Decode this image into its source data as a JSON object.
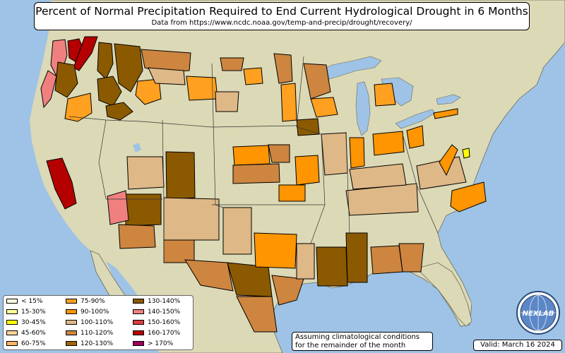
{
  "title": "Percent of Normal Precipitation Required to End Current Hydrological Drought in 6 Months",
  "subtitle": "Data from https://www.ncdc.noaa.gov/temp-and-precip/drought/recovery/",
  "note_line1": "Assuming climatological conditions",
  "note_line2": "for the remainder of the month",
  "valid_text": "Valid: March 16 2024",
  "logo_text": "NEXLAB",
  "colors": {
    "ocean": "#9ec3e6",
    "land": "#dcd9b6",
    "c_lt15": "#ffffe0",
    "c_15_30": "#ffff99",
    "c_30_45": "#ffff00",
    "c_45_60": "#ffd49a",
    "c_60_75": "#f8b464",
    "c_75_90": "#ffa020",
    "c_90_100": "#ff9500",
    "c_100_110": "#deb887",
    "c_110_120": "#cd853f",
    "c_120_130": "#a0640a",
    "c_130_140": "#8b5a00",
    "c_140_150": "#f08080",
    "c_150_160": "#dc3c3c",
    "c_160_170": "#b40000",
    "c_gt170": "#a0005a"
  },
  "legend": [
    {
      "label": "< 15%",
      "color": "#ffffe0"
    },
    {
      "label": "15-30%",
      "color": "#ffff99"
    },
    {
      "label": "30-45%",
      "color": "#ffff00"
    },
    {
      "label": "45-60%",
      "color": "#ffd49a"
    },
    {
      "label": "60-75%",
      "color": "#f8b464"
    },
    {
      "label": "75-90%",
      "color": "#ffa020"
    },
    {
      "label": "90-100%",
      "color": "#ff9500"
    },
    {
      "label": "100-110%",
      "color": "#deb887"
    },
    {
      "label": "110-120%",
      "color": "#cd853f"
    },
    {
      "label": "120-130%",
      "color": "#a0640a"
    },
    {
      "label": "130-140%",
      "color": "#8b5a00"
    },
    {
      "label": "140-150%",
      "color": "#f08080"
    },
    {
      "label": "150-160%",
      "color": "#dc3c3c"
    },
    {
      "label": "160-170%",
      "color": "#b40000"
    },
    {
      "label": "> 170%",
      "color": "#a0005a"
    }
  ]
}
